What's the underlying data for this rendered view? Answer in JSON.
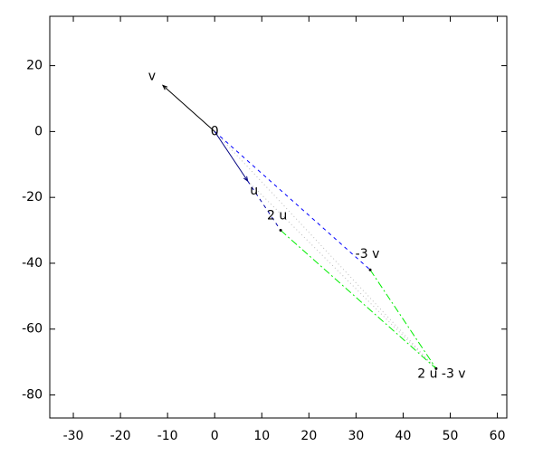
{
  "chart_data": {
    "type": "vector",
    "points": [
      {
        "label": "0",
        "x": 0,
        "y": 0
      },
      {
        "label": "u",
        "x": 7,
        "y": -15
      },
      {
        "label": "v",
        "x": -11,
        "y": 14
      },
      {
        "label": "2 u",
        "x": 14,
        "y": -30
      },
      {
        "label": "-3 v",
        "x": 33,
        "y": -42
      },
      {
        "label": "2 u -3 v",
        "x": 47,
        "y": -72
      }
    ],
    "xlim": [
      -35,
      62
    ],
    "ylim": [
      -87,
      35
    ],
    "xticks": [
      -30,
      -20,
      -10,
      0,
      10,
      20,
      30,
      40,
      50,
      60
    ],
    "yticks": [
      -80,
      -60,
      -40,
      -20,
      0,
      20
    ]
  }
}
